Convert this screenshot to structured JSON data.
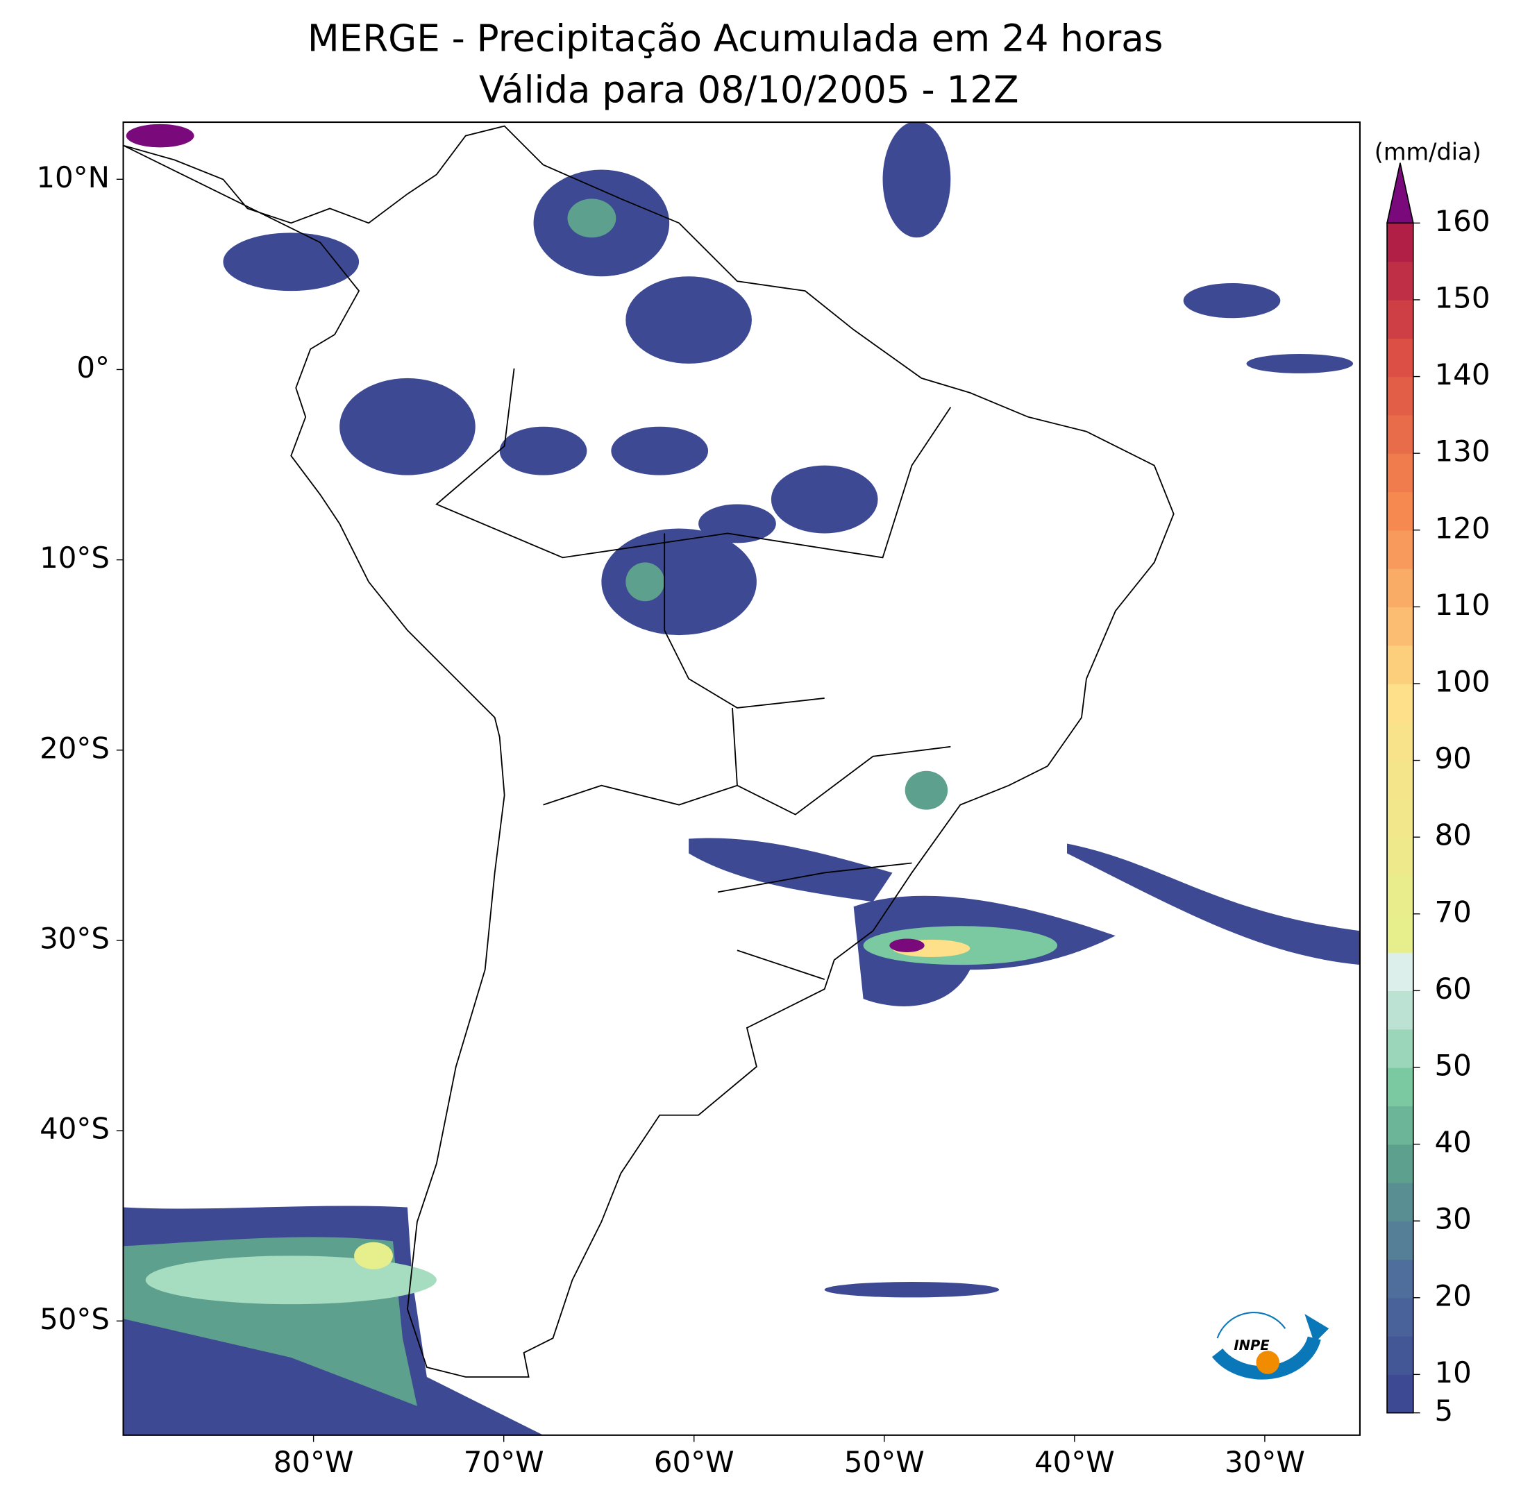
{
  "chart_data": {
    "type": "map",
    "title": "MERGE - Precipitação Acumulada em 24 horas",
    "subtitle": "Válida para 08/10/2005 - 12Z",
    "xlim": [
      -90,
      -25
    ],
    "ylim": [
      -56,
      13
    ],
    "xticks": [
      {
        "value": -80,
        "label": "80°W"
      },
      {
        "value": -70,
        "label": "70°W"
      },
      {
        "value": -60,
        "label": "60°W"
      },
      {
        "value": -50,
        "label": "50°W"
      },
      {
        "value": -40,
        "label": "40°W"
      },
      {
        "value": -30,
        "label": "30°W"
      }
    ],
    "yticks": [
      {
        "value": 10,
        "label": "10°N"
      },
      {
        "value": 0,
        "label": "0°"
      },
      {
        "value": -10,
        "label": "10°S"
      },
      {
        "value": -20,
        "label": "20°S"
      },
      {
        "value": -30,
        "label": "30°S"
      },
      {
        "value": -40,
        "label": "40°S"
      },
      {
        "value": -50,
        "label": "50°S"
      }
    ],
    "colorbar": {
      "label": "(mm/dia)",
      "levels": [
        5,
        10,
        15,
        20,
        25,
        30,
        35,
        40,
        45,
        50,
        55,
        60,
        65,
        70,
        75,
        80,
        85,
        90,
        95,
        100,
        105,
        110,
        115,
        120,
        125,
        130,
        135,
        140,
        145,
        150,
        155,
        160
      ],
      "ticks": [
        5,
        10,
        20,
        30,
        40,
        50,
        60,
        70,
        80,
        90,
        100,
        110,
        120,
        130,
        140,
        150,
        160
      ],
      "color_stops": [
        {
          "value": 5,
          "color": "#3d4a93"
        },
        {
          "value": 20,
          "color": "#4f6e9c"
        },
        {
          "value": 35,
          "color": "#5ea08e"
        },
        {
          "value": 45,
          "color": "#7ac9a1"
        },
        {
          "value": 60,
          "color": "#dcefeb"
        },
        {
          "value": 65,
          "color": "#e6ef8c"
        },
        {
          "value": 95,
          "color": "#fde089"
        },
        {
          "value": 120,
          "color": "#f6894f"
        },
        {
          "value": 140,
          "color": "#dc4f44"
        },
        {
          "value": 155,
          "color": "#b11f47"
        }
      ],
      "extend_color": "#7a0a7c"
    },
    "logo": "INPE"
  }
}
